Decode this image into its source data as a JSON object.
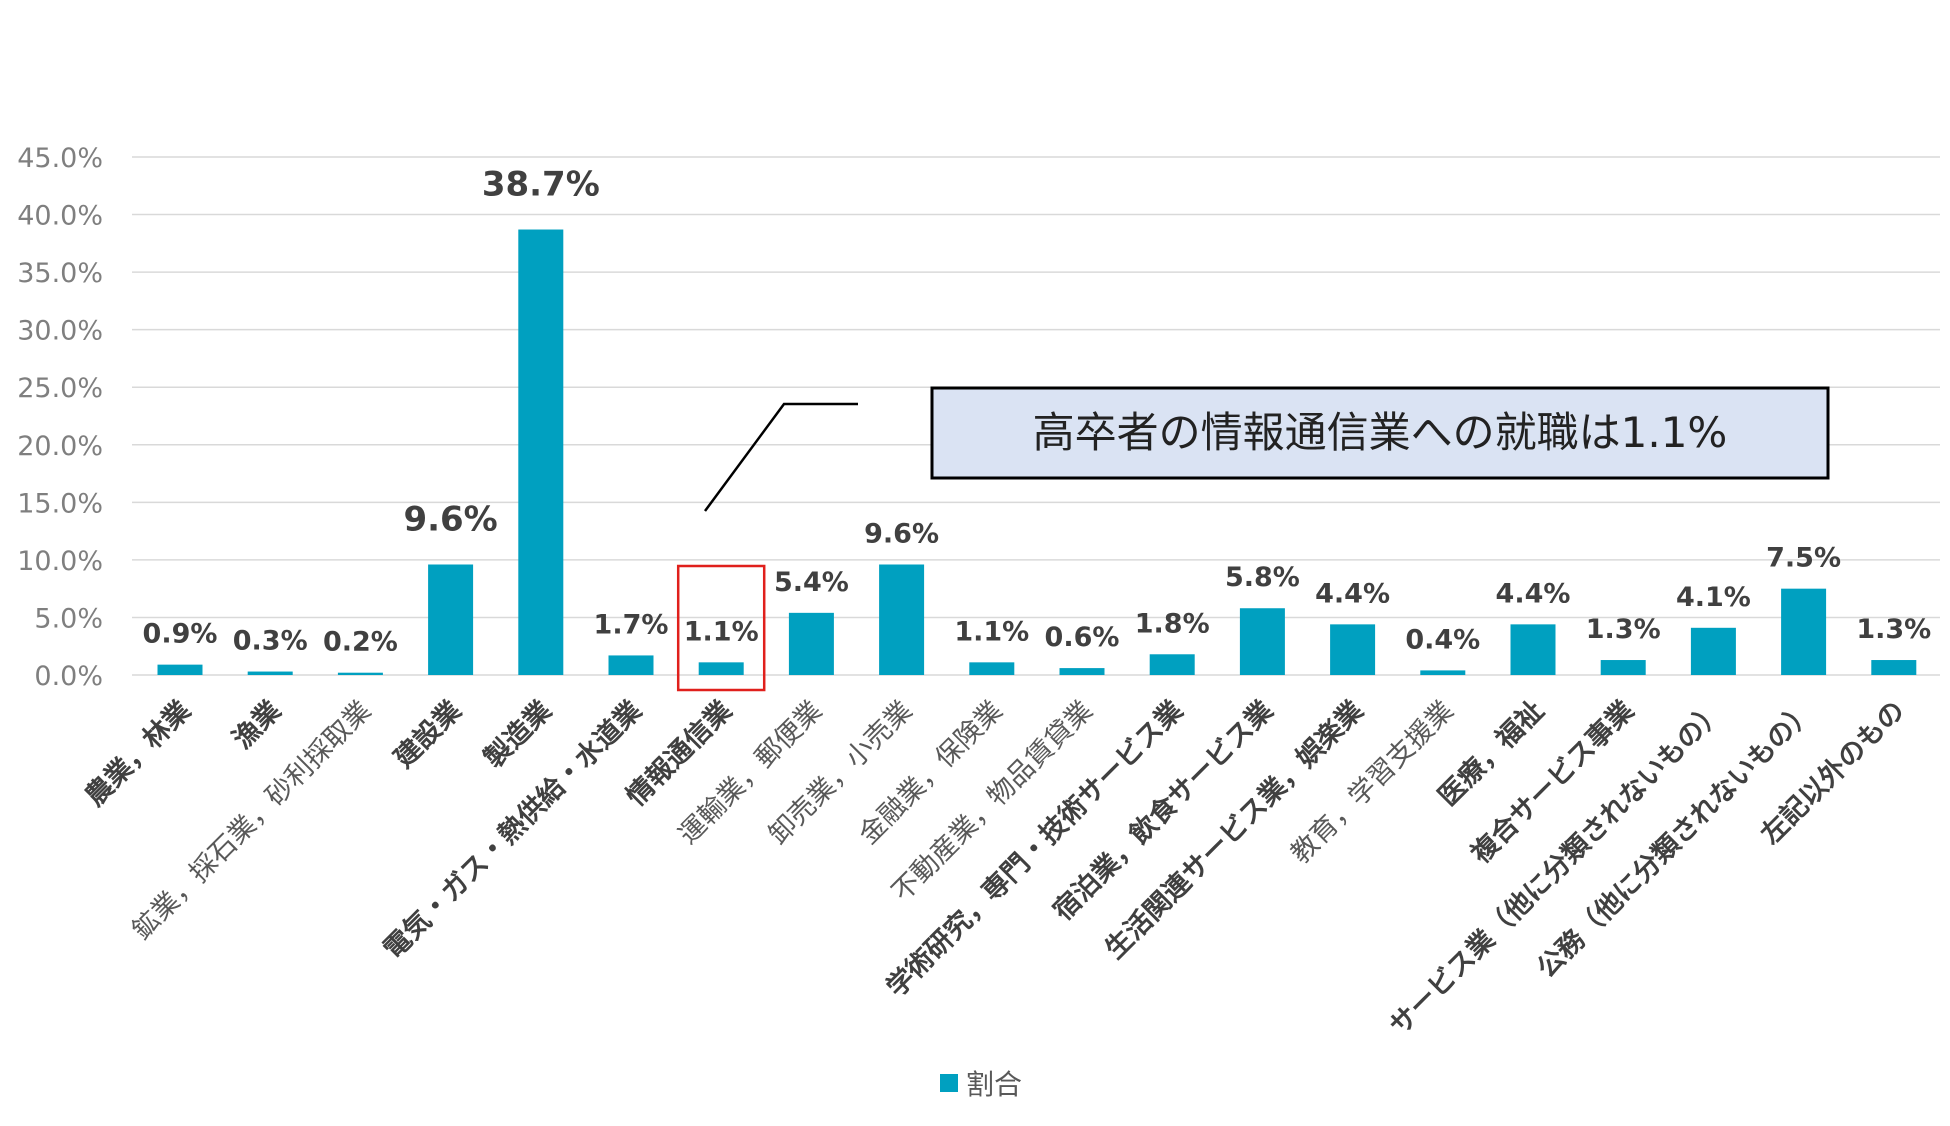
{
  "chart_data": {
    "type": "bar",
    "categories": [
      "農業，林業",
      "漁業",
      "鉱業，採石業，砂利採取業",
      "建設業",
      "製造業",
      "電気・ガス・熱供給・水道業",
      "情報通信業",
      "運輸業，郵便業",
      "卸売業，小売業",
      "金融業，保険業",
      "不動産業，物品賃貸業",
      "学術研究，専門・技術サービス業",
      "宿泊業，飲食サービス業",
      "生活関連サービス業，娯楽業",
      "教育，学習支援業",
      "医療，福祉",
      "複合サービス事業",
      "サービス業（他に分類されないもの）",
      "公務（他に分類されないもの）",
      "左記以外のもの"
    ],
    "series": [
      {
        "name": "割合",
        "values": [
          0.9,
          0.3,
          0.2,
          9.6,
          38.7,
          1.7,
          1.1,
          5.4,
          9.6,
          1.1,
          0.6,
          1.8,
          5.8,
          4.4,
          0.4,
          4.4,
          1.3,
          4.1,
          7.5,
          1.3
        ]
      }
    ],
    "data_labels": [
      "0.9%",
      "0.3%",
      "0.2%",
      "9.6%",
      "38.7%",
      "1.7%",
      "1.1%",
      "5.4%",
      "9.6%",
      "1.1%",
      "0.6%",
      "1.8%",
      "5.8%",
      "4.4%",
      "0.4%",
      "4.4%",
      "1.3%",
      "4.1%",
      "7.5%",
      "1.3%"
    ],
    "bold_categories": [
      0,
      1,
      3,
      4,
      5,
      6,
      11,
      12,
      13,
      15,
      16,
      17,
      18,
      19
    ],
    "y_ticks": [
      "0.0%",
      "5.0%",
      "10.0%",
      "15.0%",
      "20.0%",
      "25.0%",
      "30.0%",
      "35.0%",
      "40.0%",
      "45.0%"
    ],
    "ylim": [
      0,
      45
    ],
    "grid": true,
    "legend": "bottom",
    "highlight_index": 6,
    "annotation": "高卒者の情報通信業への就職は1.1%",
    "colors": {
      "bar": "#00a0c0",
      "grid": "#d9d9d9",
      "highlight": "#e0201c",
      "callout_fill": "#dae3f3",
      "callout_border": "#000000"
    }
  }
}
